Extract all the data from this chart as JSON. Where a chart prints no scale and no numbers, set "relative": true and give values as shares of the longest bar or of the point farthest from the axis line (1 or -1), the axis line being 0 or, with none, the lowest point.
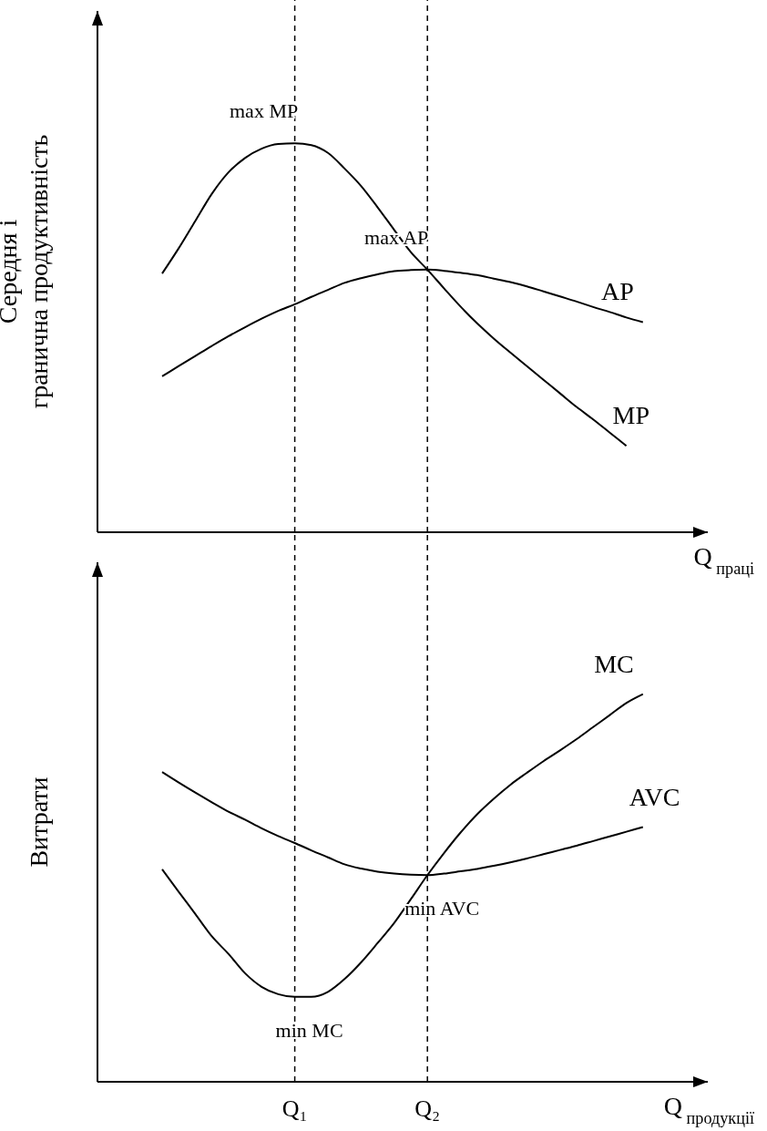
{
  "chart_data": [
    {
      "type": "line",
      "relative": true,
      "ylabel": "Середня і гранична продуктивність",
      "xlabel": "Q$_{праці}$",
      "tick_labels": false,
      "grid": false,
      "legend": false,
      "marker": "none",
      "line_style": "solid",
      "categories": [
        null,
        null,
        null,
        null,
        null,
        null,
        null,
        null,
        "Q₁",
        null,
        null,
        null,
        null,
        null,
        null,
        null,
        "Q₂",
        null,
        null,
        null,
        null,
        null,
        null,
        null,
        null,
        null,
        null,
        null,
        null,
        null,
        null
      ],
      "series": [
        {
          "name": "MP",
          "color": "#000000",
          "values": [
            0.665,
            0.73,
            0.8,
            0.87,
            0.925,
            0.962,
            0.986,
            0.998,
            1,
            0.995,
            0.975,
            0.935,
            0.89,
            0.835,
            0.777,
            0.72,
            0.675,
            0.627,
            0.58,
            0.537,
            0.498,
            0.462,
            0.427,
            0.392,
            0.357,
            0.322,
            0.29,
            0.256,
            0.222,
            null,
            null
          ]
        },
        {
          "name": "AP",
          "color": "#000000",
          "values": [
            0.401,
            0.427,
            0.453,
            0.479,
            0.504,
            0.527,
            0.549,
            0.569,
            0.586,
            0.605,
            0.623,
            0.641,
            0.653,
            0.663,
            0.671,
            0.674,
            0.675,
            0.672,
            0.667,
            0.661,
            0.652,
            0.643,
            0.632,
            0.619,
            0.606,
            0.593,
            0.579,
            0.566,
            0.552,
            0.54,
            null
          ]
        }
      ],
      "ref_lines": [
        {
          "axis": "x",
          "value": "Q₁",
          "line_style": "dashed"
        },
        {
          "axis": "x",
          "value": "Q₂",
          "line_style": "dashed"
        }
      ],
      "annotations": [
        {
          "text": "max MP",
          "x": "Q₁",
          "y": 1
        },
        {
          "text": "max AP",
          "x": "Q₂",
          "y": 0.675
        }
      ]
    },
    {
      "type": "line",
      "relative": true,
      "ylabel": "Витрати",
      "xlabel": "Q$_{продукції}$",
      "grid": false,
      "legend": false,
      "marker": "none",
      "line_style": "solid",
      "categories": [
        null,
        null,
        null,
        null,
        null,
        null,
        null,
        null,
        "Q₁",
        null,
        null,
        null,
        null,
        null,
        null,
        null,
        "Q₂",
        null,
        null,
        null,
        null,
        null,
        null,
        null,
        null,
        null,
        null,
        null,
        null,
        null,
        null
      ],
      "series": [
        {
          "name": "MC",
          "color": "#000000",
          "values": [
            0.548,
            0.49,
            0.433,
            0.375,
            0.33,
            0.28,
            0.245,
            0.226,
            0.219,
            0.219,
            0.232,
            0.265,
            0.308,
            0.358,
            0.41,
            0.471,
            0.533,
            0.59,
            0.643,
            0.69,
            0.73,
            0.766,
            0.797,
            0.827,
            0.855,
            0.884,
            0.915,
            0.946,
            0.977,
            1,
            null
          ]
        },
        {
          "name": "AVC",
          "color": "#000000",
          "values": [
            0.799,
            0.772,
            0.746,
            0.721,
            0.697,
            0.676,
            0.654,
            0.634,
            0.616,
            0.597,
            0.579,
            0.561,
            0.55,
            0.542,
            0.537,
            0.534,
            0.533,
            0.537,
            0.543,
            0.549,
            0.557,
            0.566,
            0.576,
            0.587,
            0.598,
            0.609,
            0.621,
            0.633,
            0.645,
            0.657,
            null
          ]
        }
      ],
      "ref_lines": [
        {
          "axis": "x",
          "value": "Q₁",
          "line_style": "dashed"
        },
        {
          "axis": "x",
          "value": "Q₂",
          "line_style": "dashed"
        }
      ],
      "annotations": [
        {
          "text": "min MC",
          "x": "Q₁",
          "y": 0.219
        },
        {
          "text": "min AVC",
          "x": "Q₂",
          "y": 0.533
        }
      ]
    }
  ]
}
